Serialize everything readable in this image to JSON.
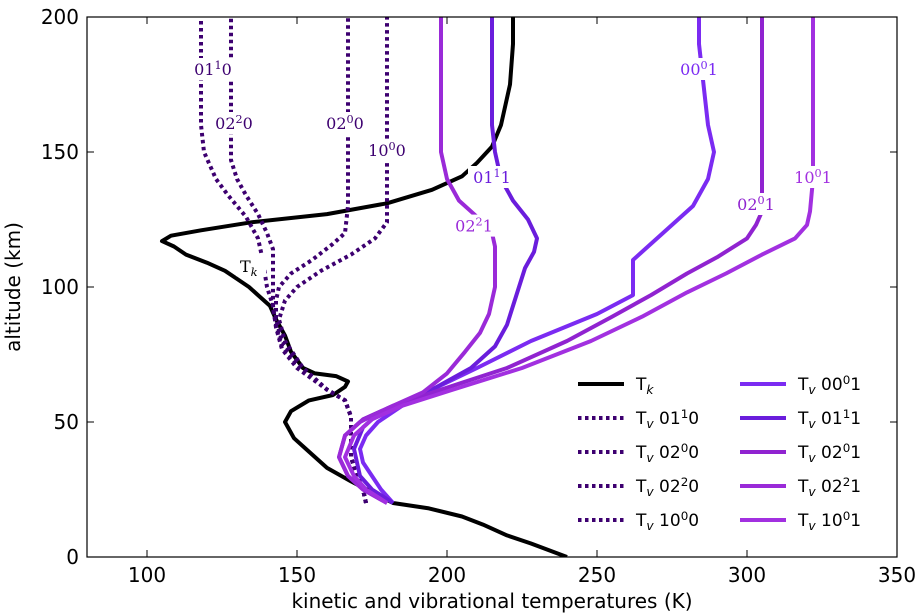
{
  "chart_data": {
    "type": "line",
    "xlabel": "kinetic and vibrational temperatures (K)",
    "ylabel": "altitude (km)",
    "xlim": [
      80,
      350
    ],
    "ylim": [
      0,
      200
    ],
    "xticks": [
      "100",
      "150",
      "200",
      "250",
      "300",
      "350"
    ],
    "yticks": [
      "0",
      "50",
      "100",
      "150",
      "200"
    ],
    "grid": false,
    "legend_position": "lower-right",
    "series": [
      {
        "name": "T_k",
        "legend": "Tk",
        "style": "solid",
        "color": "#000000",
        "label": "Tk",
        "points": [
          [
            240,
            0
          ],
          [
            228,
            5
          ],
          [
            220,
            8
          ],
          [
            212,
            12
          ],
          [
            205,
            15
          ],
          [
            194,
            18
          ],
          [
            182,
            20
          ],
          [
            175,
            24
          ],
          [
            168,
            28
          ],
          [
            160,
            33
          ],
          [
            153,
            40
          ],
          [
            149,
            44
          ],
          [
            146,
            50
          ],
          [
            148,
            54
          ],
          [
            154,
            58
          ],
          [
            162,
            60
          ],
          [
            166,
            63
          ],
          [
            167,
            65
          ],
          [
            163,
            67
          ],
          [
            156,
            68
          ],
          [
            152,
            70
          ],
          [
            148,
            76
          ],
          [
            146,
            82
          ],
          [
            143,
            88
          ],
          [
            141,
            93
          ],
          [
            137,
            97
          ],
          [
            134,
            100
          ],
          [
            130,
            103
          ],
          [
            126,
            106
          ],
          [
            120,
            109
          ],
          [
            113,
            112
          ],
          [
            109,
            115
          ],
          [
            105,
            117
          ],
          [
            108,
            119
          ],
          [
            118,
            121
          ],
          [
            135,
            124
          ],
          [
            160,
            127
          ],
          [
            180,
            131
          ],
          [
            195,
            136
          ],
          [
            205,
            141
          ],
          [
            210,
            146
          ],
          [
            215,
            152
          ],
          [
            218,
            160
          ],
          [
            221,
            175
          ],
          [
            222,
            190
          ],
          [
            222,
            200
          ]
        ]
      },
      {
        "name": "Tv 01^1 0",
        "legend": "Tv 01^1 0",
        "style": "dotted",
        "color": "#3d0070",
        "label": "01^1 0",
        "points": [
          [
            173,
            20
          ],
          [
            172,
            25
          ],
          [
            170,
            30
          ],
          [
            168,
            37
          ],
          [
            168,
            45
          ],
          [
            168,
            52
          ],
          [
            166,
            58
          ],
          [
            160,
            62
          ],
          [
            150,
            70
          ],
          [
            145,
            77
          ],
          [
            143,
            85
          ],
          [
            142,
            93
          ],
          [
            140,
            100
          ],
          [
            139,
            107
          ],
          [
            138,
            113
          ],
          [
            137,
            118
          ],
          [
            133,
            126
          ],
          [
            127,
            134
          ],
          [
            123,
            140
          ],
          [
            121,
            145
          ],
          [
            119,
            150
          ],
          [
            118,
            160
          ],
          [
            118,
            170
          ],
          [
            118,
            180
          ],
          [
            118,
            190
          ],
          [
            118,
            200
          ]
        ]
      },
      {
        "name": "Tv 02^0 0",
        "legend": "Tv 02^0 0",
        "style": "dotted",
        "color": "#3d0070",
        "label": "02^0 0",
        "points": [
          [
            173,
            20
          ],
          [
            172,
            25
          ],
          [
            170,
            30
          ],
          [
            168,
            37
          ],
          [
            168,
            45
          ],
          [
            168,
            52
          ],
          [
            166,
            58
          ],
          [
            160,
            62
          ],
          [
            152,
            70
          ],
          [
            145,
            80
          ],
          [
            143,
            88
          ],
          [
            143,
            95
          ],
          [
            144,
            100
          ],
          [
            148,
            105
          ],
          [
            155,
            110
          ],
          [
            162,
            116
          ],
          [
            166,
            120
          ],
          [
            167,
            130
          ],
          [
            167,
            145
          ],
          [
            167,
            160
          ],
          [
            167,
            175
          ],
          [
            167,
            190
          ],
          [
            167,
            200
          ]
        ]
      },
      {
        "name": "Tv 02^2 0",
        "legend": "Tv 02^2 0",
        "style": "dotted",
        "color": "#3d0070",
        "label": "02^2 0",
        "points": [
          [
            173,
            20
          ],
          [
            172,
            25
          ],
          [
            170,
            30
          ],
          [
            168,
            37
          ],
          [
            168,
            45
          ],
          [
            168,
            52
          ],
          [
            166,
            58
          ],
          [
            160,
            62
          ],
          [
            151,
            70
          ],
          [
            145,
            78
          ],
          [
            143,
            86
          ],
          [
            142,
            92
          ],
          [
            142,
            100
          ],
          [
            142,
            108
          ],
          [
            142,
            114
          ],
          [
            140,
            120
          ],
          [
            137,
            127
          ],
          [
            133,
            134
          ],
          [
            130,
            140
          ],
          [
            128,
            147
          ],
          [
            128,
            155
          ],
          [
            128,
            165
          ],
          [
            128,
            175
          ],
          [
            128,
            190
          ],
          [
            128,
            200
          ]
        ]
      },
      {
        "name": "Tv 10^0 0",
        "legend": "Tv 10^0 0",
        "style": "dotted",
        "color": "#3d0070",
        "label": "10^0 0",
        "points": [
          [
            173,
            20
          ],
          [
            172,
            25
          ],
          [
            170,
            30
          ],
          [
            168,
            37
          ],
          [
            168,
            45
          ],
          [
            168,
            52
          ],
          [
            166,
            58
          ],
          [
            160,
            62
          ],
          [
            152,
            70
          ],
          [
            146,
            80
          ],
          [
            144,
            88
          ],
          [
            146,
            95
          ],
          [
            150,
            100
          ],
          [
            158,
            106
          ],
          [
            168,
            112
          ],
          [
            176,
            118
          ],
          [
            180,
            124
          ],
          [
            180,
            132
          ],
          [
            180,
            145
          ],
          [
            180,
            160
          ],
          [
            180,
            175
          ],
          [
            180,
            190
          ],
          [
            180,
            200
          ]
        ]
      },
      {
        "name": "Tv 00^0 1",
        "legend": "Tv 00^0 1",
        "style": "solid",
        "color": "#7b2bf2",
        "label": "00^0 1",
        "points": [
          [
            182,
            20
          ],
          [
            178,
            25
          ],
          [
            175,
            30
          ],
          [
            172,
            35
          ],
          [
            171,
            40
          ],
          [
            173,
            45
          ],
          [
            177,
            50
          ],
          [
            185,
            56
          ],
          [
            195,
            62
          ],
          [
            210,
            70
          ],
          [
            228,
            80
          ],
          [
            250,
            90
          ],
          [
            262,
            97
          ],
          [
            262,
            110
          ],
          [
            265,
            113
          ],
          [
            272,
            120
          ],
          [
            282,
            130
          ],
          [
            287,
            140
          ],
          [
            289,
            150
          ],
          [
            287,
            160
          ],
          [
            286,
            170
          ],
          [
            285,
            180
          ],
          [
            284,
            190
          ],
          [
            284,
            200
          ]
        ]
      },
      {
        "name": "Tv 01^1 1",
        "legend": "Tv 01^1 1",
        "style": "solid",
        "color": "#6a1ddc",
        "label": "01^1 1",
        "points": [
          [
            182,
            20
          ],
          [
            175,
            25
          ],
          [
            171,
            30
          ],
          [
            169,
            40
          ],
          [
            172,
            48
          ],
          [
            177,
            53
          ],
          [
            185,
            57
          ],
          [
            195,
            62
          ],
          [
            208,
            70
          ],
          [
            216,
            78
          ],
          [
            220,
            86
          ],
          [
            222,
            93
          ],
          [
            224,
            100
          ],
          [
            226,
            107
          ],
          [
            229,
            113
          ],
          [
            230,
            118
          ],
          [
            227,
            125
          ],
          [
            222,
            132
          ],
          [
            218,
            140
          ],
          [
            216,
            150
          ],
          [
            215,
            160
          ],
          [
            215,
            175
          ],
          [
            215,
            190
          ],
          [
            215,
            200
          ]
        ]
      },
      {
        "name": "Tv 02^0 1",
        "legend": "Tv 02^0 1",
        "style": "solid",
        "color": "#9023d0",
        "label": "02^0 1",
        "points": [
          [
            180,
            20
          ],
          [
            172,
            25
          ],
          [
            167,
            30
          ],
          [
            164,
            37
          ],
          [
            166,
            45
          ],
          [
            172,
            51
          ],
          [
            182,
            56
          ],
          [
            198,
            62
          ],
          [
            220,
            70
          ],
          [
            240,
            80
          ],
          [
            255,
            89
          ],
          [
            268,
            97
          ],
          [
            280,
            105
          ],
          [
            290,
            111
          ],
          [
            300,
            118
          ],
          [
            303,
            123
          ],
          [
            305,
            128
          ],
          [
            305,
            140
          ],
          [
            305,
            160
          ],
          [
            305,
            180
          ],
          [
            305,
            200
          ]
        ]
      },
      {
        "name": "Tv 02^2 1",
        "legend": "Tv 02^2 1",
        "style": "solid",
        "color": "#9a2ad8",
        "label": "02^2 1",
        "points": [
          [
            180,
            20
          ],
          [
            172,
            25
          ],
          [
            167,
            30
          ],
          [
            164,
            37
          ],
          [
            166,
            45
          ],
          [
            171,
            50
          ],
          [
            180,
            55
          ],
          [
            192,
            61
          ],
          [
            200,
            68
          ],
          [
            206,
            76
          ],
          [
            211,
            83
          ],
          [
            214,
            90
          ],
          [
            216,
            100
          ],
          [
            216,
            108
          ],
          [
            216,
            115
          ],
          [
            215,
            120
          ],
          [
            210,
            126
          ],
          [
            204,
            132
          ],
          [
            200,
            140
          ],
          [
            198,
            150
          ],
          [
            198,
            160
          ],
          [
            198,
            175
          ],
          [
            198,
            190
          ],
          [
            198,
            200
          ]
        ]
      },
      {
        "name": "Tv 10^0 1",
        "legend": "Tv 10^0 1",
        "style": "solid",
        "color": "#a230e0",
        "label": "10^0 1",
        "points": [
          [
            180,
            20
          ],
          [
            173,
            25
          ],
          [
            169,
            30
          ],
          [
            166,
            37
          ],
          [
            169,
            45
          ],
          [
            175,
            51
          ],
          [
            185,
            56
          ],
          [
            202,
            62
          ],
          [
            225,
            70
          ],
          [
            248,
            80
          ],
          [
            265,
            89
          ],
          [
            280,
            98
          ],
          [
            293,
            105
          ],
          [
            305,
            112
          ],
          [
            316,
            118
          ],
          [
            320,
            123
          ],
          [
            321,
            128
          ],
          [
            322,
            140
          ],
          [
            322,
            160
          ],
          [
            322,
            180
          ],
          [
            322,
            200
          ]
        ]
      }
    ]
  }
}
